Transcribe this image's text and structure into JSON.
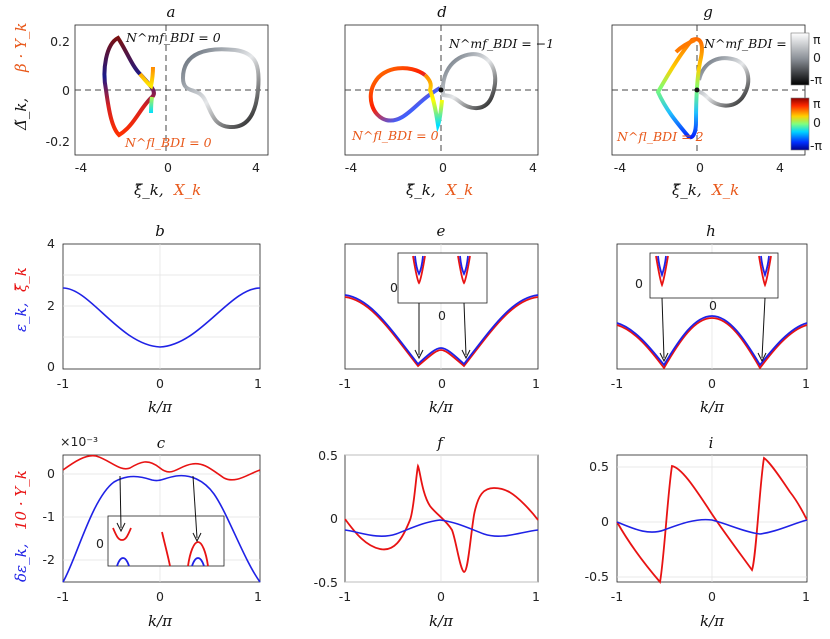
{
  "colors": {
    "blue": "#1f22e6",
    "red": "#e81313",
    "orange": "#e8581a",
    "text": "#111111",
    "grid": "#e2e2e2"
  },
  "top_row": {
    "ylabel_part1": "Δ̃_k,",
    "ylabel_part2": "β · Y_k",
    "xlabel_part1": "ξ̃_k,",
    "xlabel_part2": "X_k",
    "xticks": [
      "-4",
      "0",
      "4"
    ],
    "yticks": [
      "0.2",
      "0",
      "-0.2"
    ],
    "panels": [
      {
        "letter": "a",
        "mf_label": "N^mf_BDI = 0",
        "fl_label": "N^fl_BDI = 0"
      },
      {
        "letter": "d",
        "mf_label": "N^mf_BDI = −1",
        "fl_label": "N^fl_BDI = 0"
      },
      {
        "letter": "g",
        "mf_label": "N^mf_BDI = −1",
        "fl_label": "N^fl_BDI = 2"
      }
    ],
    "colorbar_gray": {
      "ticks": [
        "π",
        "0",
        "-π"
      ]
    },
    "colorbar_jet": {
      "ticks": [
        "π",
        "0",
        "-π"
      ]
    }
  },
  "mid_row": {
    "ylabel_part1": "ε_k,",
    "ylabel_part2": "ξ̄_k",
    "xlabel": "k/π",
    "xticks": [
      "-1",
      "0",
      "1"
    ],
    "yticks": [
      "4",
      "2",
      "0"
    ],
    "panels": [
      {
        "letter": "b"
      },
      {
        "letter": "e",
        "inset_ytick": "0",
        "inset_xtick": "0"
      },
      {
        "letter": "h",
        "inset_ytick": "0",
        "inset_xtick": "0"
      }
    ]
  },
  "bot_row": {
    "ylabel_part1": "δε_k,",
    "ylabel_part2": "10 · Y_k",
    "xlabel": "k/π",
    "xticks": [
      "-1",
      "0",
      "1"
    ],
    "panels": [
      {
        "letter": "c",
        "exponent": "×10⁻³",
        "yticks": [
          "0",
          "-1",
          "-2"
        ],
        "inset_ytick": "0"
      },
      {
        "letter": "f",
        "yticks": [
          "0.5",
          "0",
          "-0.5"
        ]
      },
      {
        "letter": "i",
        "yticks": [
          "0.5",
          "0",
          "-0.5"
        ]
      }
    ]
  },
  "chart_data": [
    {
      "panel": "a",
      "type": "line",
      "x_range": [
        -4,
        4
      ],
      "y_range": [
        -0.22,
        0.22
      ]
    },
    {
      "panel": "d",
      "type": "line",
      "x_range": [
        -4,
        4
      ],
      "y_range": [
        -0.22,
        0.22
      ]
    },
    {
      "panel": "g",
      "type": "line",
      "x_range": [
        -4,
        4
      ],
      "y_range": [
        -0.22,
        0.22
      ]
    },
    {
      "panel": "b",
      "type": "line",
      "x_range": [
        -1,
        1
      ],
      "y_range": [
        0,
        4
      ],
      "series": [
        {
          "values_at_k": [
            [
              -1,
              2.5
            ],
            [
              -0.5,
              1.5
            ],
            [
              0,
              0.55
            ],
            [
              0.5,
              1.5
            ],
            [
              1,
              2.5
            ]
          ]
        }
      ]
    },
    {
      "panel": "e",
      "type": "line",
      "x_range": [
        -1,
        1
      ],
      "series": [
        {
          "values_at_k": [
            [
              -1,
              2.1
            ],
            [
              -0.27,
              0.05
            ],
            [
              0,
              0.45
            ],
            [
              0.27,
              0.05
            ],
            [
              1,
              2.1
            ]
          ]
        },
        {
          "values_at_k": [
            [
              -1,
              2.05
            ],
            [
              -0.27,
              0.0
            ],
            [
              0,
              0.4
            ],
            [
              0.27,
              0.0
            ],
            [
              1,
              2.05
            ]
          ]
        }
      ]
    },
    {
      "panel": "h",
      "type": "line",
      "x_range": [
        -1,
        1
      ],
      "series": [
        {
          "values_at_k": [
            [
              -1,
              1.0
            ],
            [
              -0.5,
              0.05
            ],
            [
              0,
              1.05
            ],
            [
              0.5,
              0.05
            ],
            [
              1,
              1.0
            ]
          ]
        },
        {
          "values_at_k": [
            [
              -1,
              0.95
            ],
            [
              -0.5,
              0.0
            ],
            [
              0,
              1.0
            ],
            [
              0.5,
              0.0
            ],
            [
              1,
              0.95
            ]
          ]
        }
      ]
    },
    {
      "panel": "c",
      "type": "line",
      "x_range": [
        -1,
        1
      ],
      "y_range": [
        -2.7,
        0.3
      ]
    },
    {
      "panel": "f",
      "type": "line",
      "x_range": [
        -1,
        1
      ],
      "y_range": [
        -0.5,
        0.5
      ]
    },
    {
      "panel": "i",
      "type": "line",
      "x_range": [
        -1,
        1
      ],
      "y_range": [
        -0.6,
        0.6
      ]
    }
  ]
}
